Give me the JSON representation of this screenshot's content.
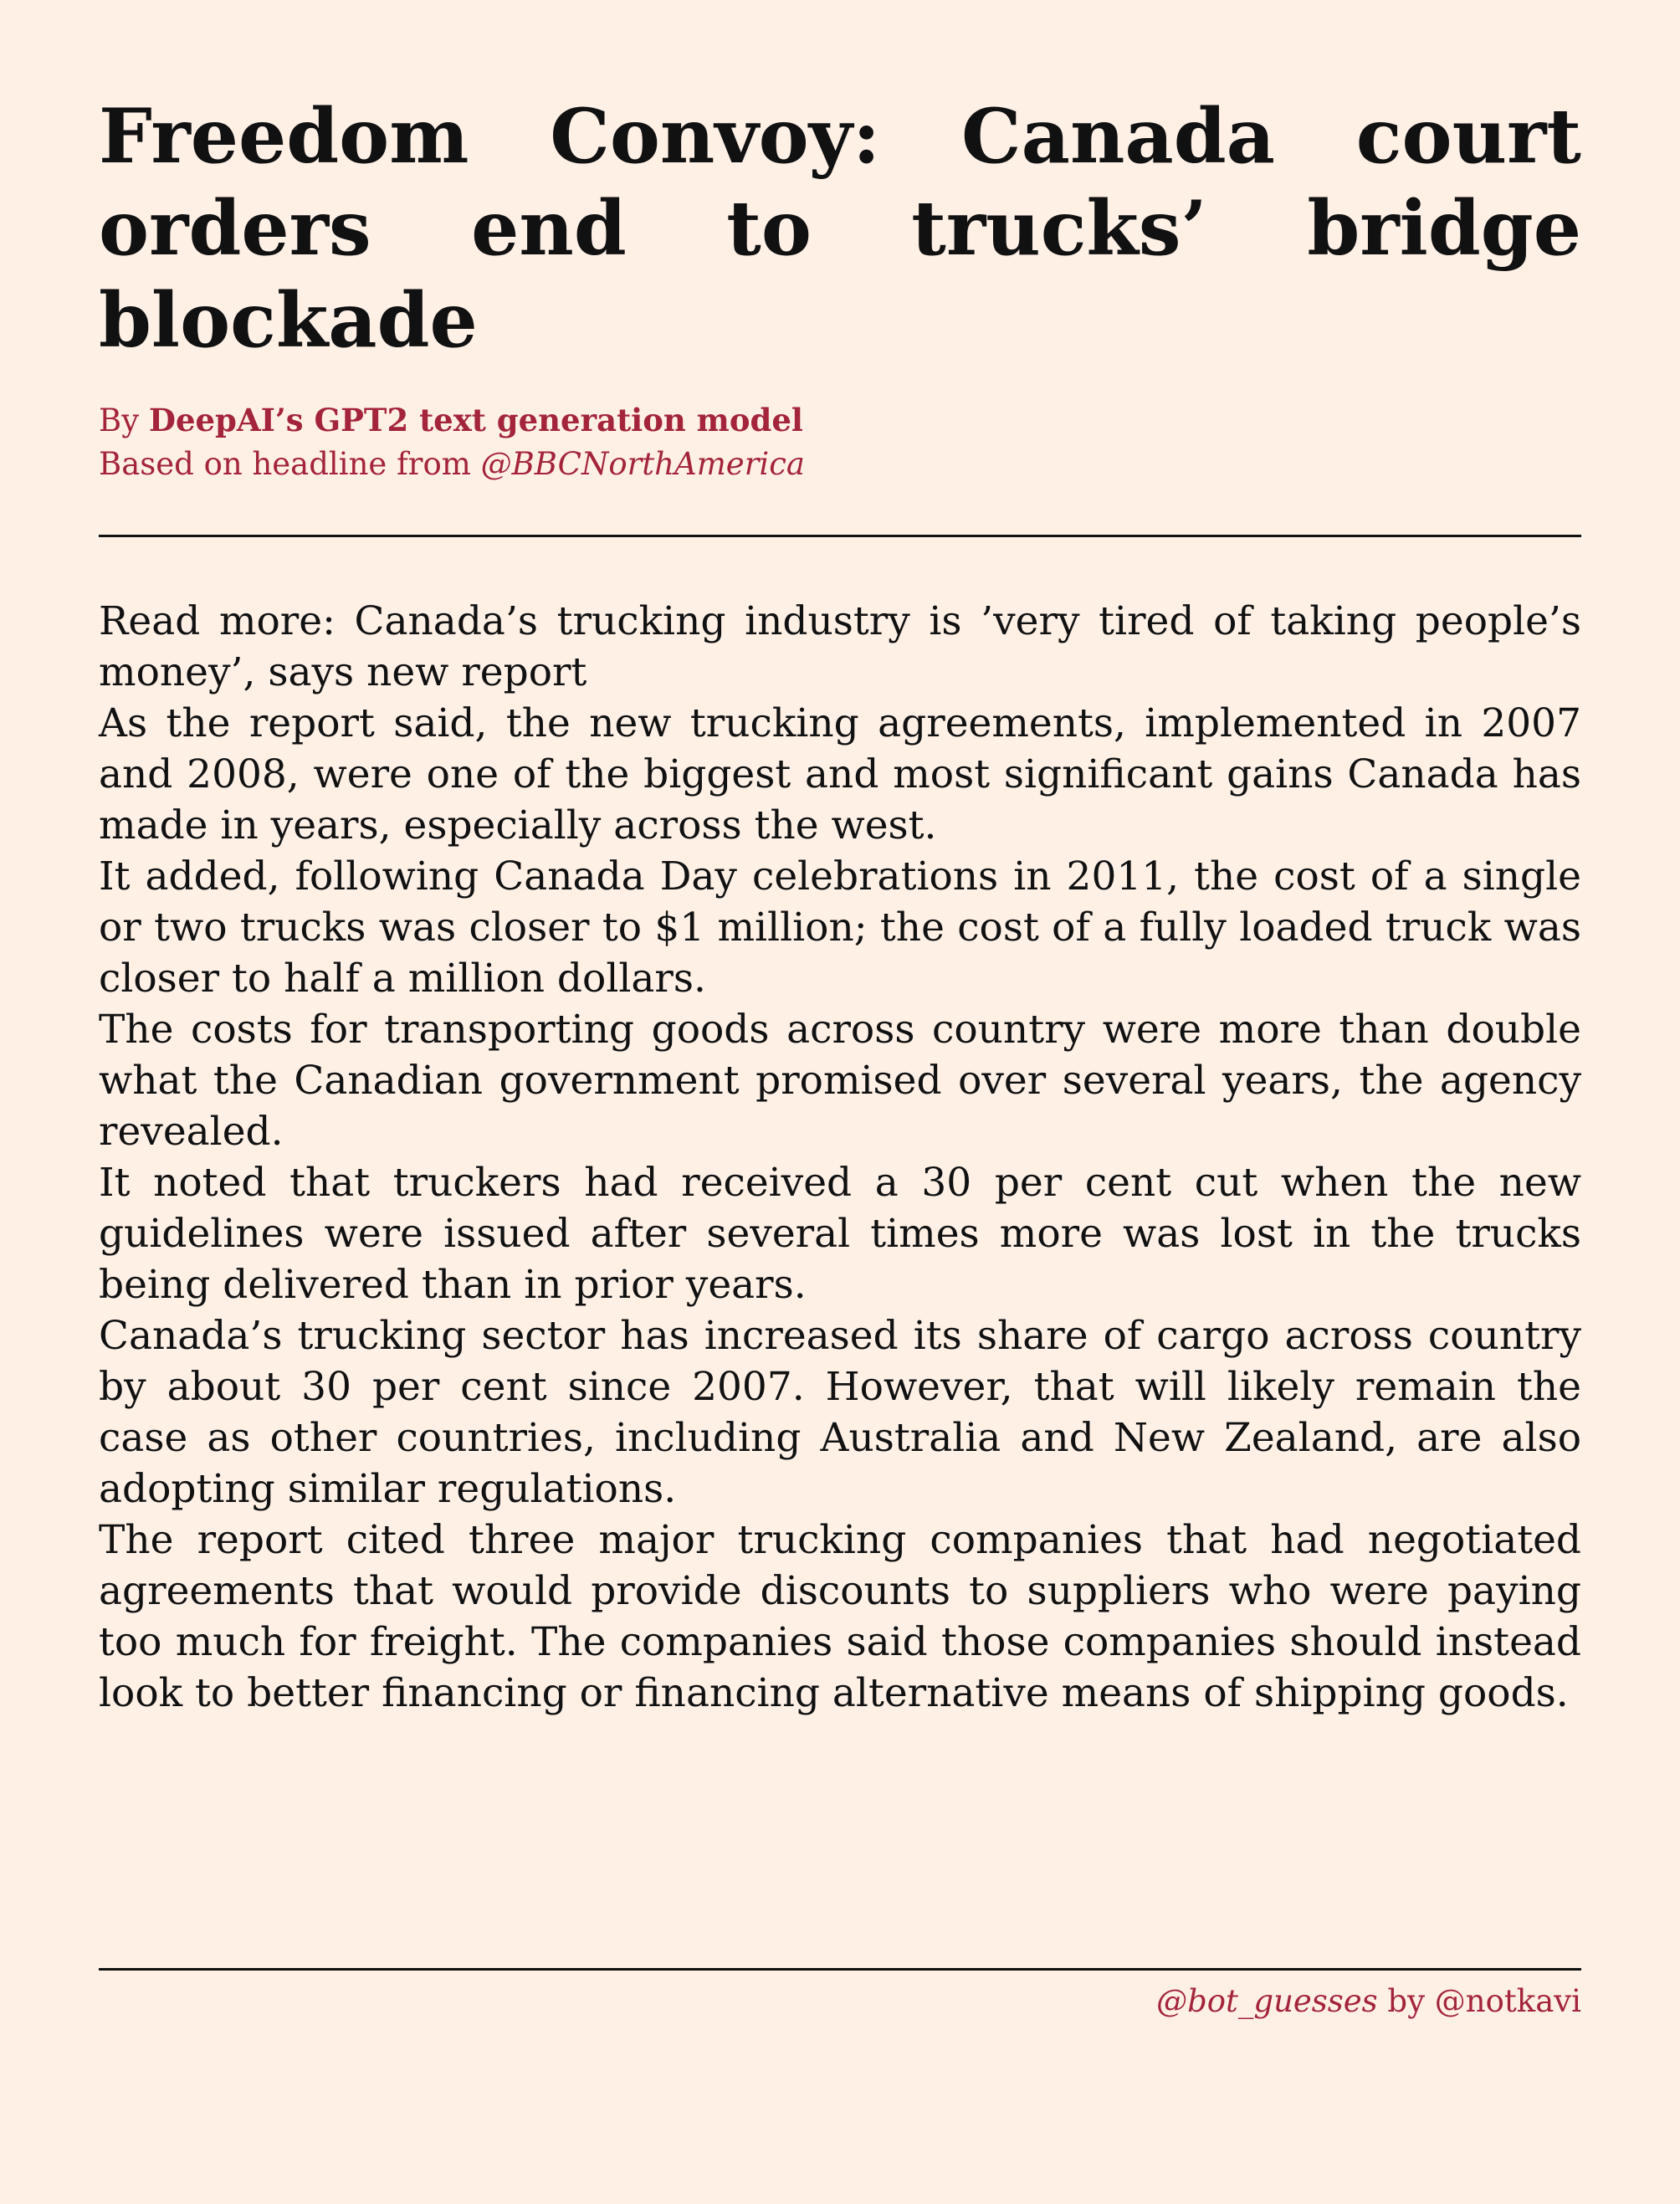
{
  "article": {
    "title": "Freedom Convoy: Canada court orders end to trucks’ bridge blockade",
    "byline": {
      "prefix": "By ",
      "author": "DeepAI’s GPT2 text generation model",
      "source_prefix": "Based on headline from ",
      "source_handle": "@BBCNorthAmerica"
    },
    "paragraphs": [
      "Read more: Canada’s trucking industry is ’very tired of taking people’s money’, says new report",
      "As the report said, the new trucking agreements, implemented in 2007 and 2008, were one of the biggest and most significant gains Canada has made in years, especially across the west.",
      "It added, following Canada Day celebrations in 2011, the cost of a single or two trucks was closer to $1 million; the cost of a fully loaded truck was closer to half a million dollars.",
      "The costs for transporting goods across country were more than double what the Canadian government promised over several years, the agency revealed.",
      "It noted that truckers had received a 30 per cent cut when the new guidelines were issued after several times more was lost in the trucks being delivered than in prior years.",
      "Canada’s trucking sector has increased its share of cargo across country by about 30 per cent since 2007. However, that will likely remain the case as other countries, including Australia and New Zealand, are also adopting similar regulations.",
      "The report cited three major trucking companies that had negotiated agreements that would provide discounts to suppliers who were paying too much for freight. The companies said those companies should instead look to better financing or financing alternative means of shipping goods."
    ]
  },
  "footer": {
    "bot_handle": "@bot_guesses",
    "by_text": " by ",
    "author_handle": "@notkavi"
  },
  "colors": {
    "background": "#fff0e6",
    "accent": "#a3243b",
    "text": "#111111"
  }
}
